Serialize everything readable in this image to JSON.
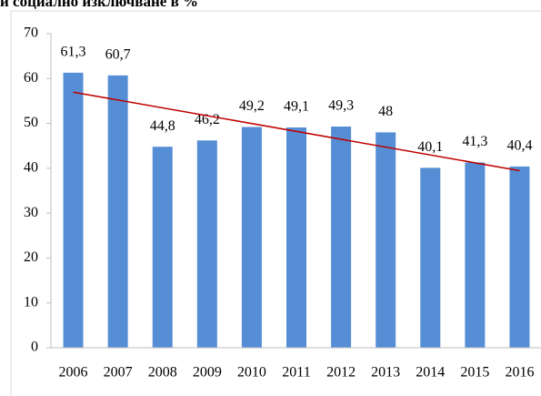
{
  "chart_data": {
    "type": "bar",
    "title": "и социално изключване в %",
    "categories": [
      "2006",
      "2007",
      "2008",
      "2009",
      "2010",
      "2011",
      "2012",
      "2013",
      "2014",
      "2015",
      "2016"
    ],
    "values": [
      61.3,
      60.7,
      44.8,
      46.2,
      49.2,
      49.1,
      49.3,
      48,
      40.1,
      41.3,
      40.4
    ],
    "value_labels": [
      "61,3",
      "60,7",
      "44,8",
      "46,2",
      "49,2",
      "49,1",
      "49,3",
      "48",
      "40,1",
      "41,3",
      "40,4"
    ],
    "color": "#558ed5",
    "ylim": [
      0,
      70
    ],
    "yticks": [
      0,
      10,
      20,
      30,
      40,
      50,
      60,
      70
    ],
    "grid": false,
    "trendline": {
      "color": "#c00000",
      "values": [
        56.97,
        39.47
      ]
    }
  }
}
